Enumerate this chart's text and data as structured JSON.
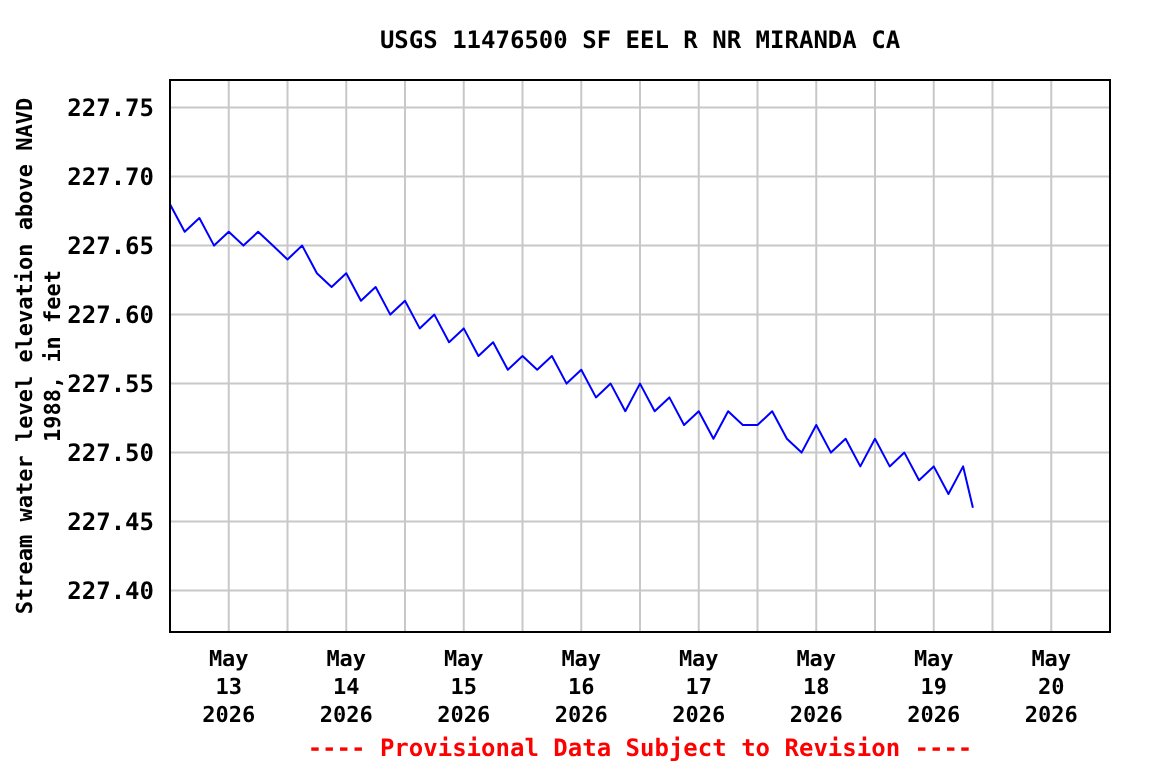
{
  "chart_data": {
    "type": "line",
    "title": "USGS 11476500 SF EEL R NR MIRANDA CA",
    "ylabel": "Stream water level elevation above NAVD\n1988, in feet",
    "annotations": [
      "---- Provisional Data Subject to Revision ----"
    ],
    "x": [
      "2026-05-13T00:00",
      "2026-05-13T03:00",
      "2026-05-13T06:00",
      "2026-05-13T09:00",
      "2026-05-13T12:00",
      "2026-05-13T15:00",
      "2026-05-13T18:00",
      "2026-05-13T21:00",
      "2026-05-14T00:00",
      "2026-05-14T03:00",
      "2026-05-14T06:00",
      "2026-05-14T09:00",
      "2026-05-14T12:00",
      "2026-05-14T15:00",
      "2026-05-14T18:00",
      "2026-05-14T21:00",
      "2026-05-15T00:00",
      "2026-05-15T03:00",
      "2026-05-15T06:00",
      "2026-05-15T09:00",
      "2026-05-15T12:00",
      "2026-05-15T15:00",
      "2026-05-15T18:00",
      "2026-05-15T21:00",
      "2026-05-16T00:00",
      "2026-05-16T03:00",
      "2026-05-16T06:00",
      "2026-05-16T09:00",
      "2026-05-16T12:00",
      "2026-05-16T15:00",
      "2026-05-16T18:00",
      "2026-05-16T21:00",
      "2026-05-17T00:00",
      "2026-05-17T03:00",
      "2026-05-17T06:00",
      "2026-05-17T09:00",
      "2026-05-17T12:00",
      "2026-05-17T15:00",
      "2026-05-17T18:00",
      "2026-05-17T21:00",
      "2026-05-18T00:00",
      "2026-05-18T03:00",
      "2026-05-18T06:00",
      "2026-05-18T09:00",
      "2026-05-18T12:00",
      "2026-05-18T15:00",
      "2026-05-18T18:00",
      "2026-05-18T21:00",
      "2026-05-19T00:00",
      "2026-05-19T03:00",
      "2026-05-19T06:00",
      "2026-05-19T09:00",
      "2026-05-19T12:00",
      "2026-05-19T15:00",
      "2026-05-19T18:00",
      "2026-05-19T20:00"
    ],
    "series": [
      {
        "color": "#0000ff",
        "values": [
          227.68,
          227.66,
          227.67,
          227.65,
          227.66,
          227.65,
          227.66,
          227.65,
          227.64,
          227.65,
          227.63,
          227.62,
          227.63,
          227.61,
          227.62,
          227.6,
          227.61,
          227.59,
          227.6,
          227.58,
          227.59,
          227.57,
          227.58,
          227.56,
          227.57,
          227.56,
          227.57,
          227.55,
          227.56,
          227.54,
          227.55,
          227.53,
          227.55,
          227.53,
          227.54,
          227.52,
          227.53,
          227.51,
          227.53,
          227.52,
          227.52,
          227.53,
          227.51,
          227.5,
          227.52,
          227.5,
          227.51,
          227.49,
          227.51,
          227.49,
          227.5,
          227.48,
          227.49,
          227.47,
          227.49,
          227.46
        ]
      }
    ],
    "xlim": [
      "2026-05-13T00:00",
      "2026-05-21T00:00"
    ],
    "xticks": [
      {
        "value": "2026-05-13T12:00",
        "label": "May\n13\n2026"
      },
      {
        "value": "2026-05-14T00:00",
        "label": null
      },
      {
        "value": "2026-05-14T12:00",
        "label": "May\n14\n2026"
      },
      {
        "value": "2026-05-15T00:00",
        "label": null
      },
      {
        "value": "2026-05-15T12:00",
        "label": "May\n15\n2026"
      },
      {
        "value": "2026-05-16T00:00",
        "label": null
      },
      {
        "value": "2026-05-16T12:00",
        "label": "May\n16\n2026"
      },
      {
        "value": "2026-05-17T00:00",
        "label": null
      },
      {
        "value": "2026-05-17T12:00",
        "label": "May\n17\n2026"
      },
      {
        "value": "2026-05-18T00:00",
        "label": null
      },
      {
        "value": "2026-05-18T12:00",
        "label": "May\n18\n2026"
      },
      {
        "value": "2026-05-19T00:00",
        "label": null
      },
      {
        "value": "2026-05-19T12:00",
        "label": "May\n19\n2026"
      },
      {
        "value": "2026-05-20T00:00",
        "label": null
      },
      {
        "value": "2026-05-20T12:00",
        "label": "May\n20\n2026"
      }
    ],
    "ylim": [
      227.37,
      227.77
    ],
    "yticks": [
      {
        "value": 227.4,
        "label": "227.40"
      },
      {
        "value": 227.45,
        "label": "227.45"
      },
      {
        "value": 227.5,
        "label": "227.50"
      },
      {
        "value": 227.55,
        "label": "227.55"
      },
      {
        "value": 227.6,
        "label": "227.60"
      },
      {
        "value": 227.65,
        "label": "227.65"
      },
      {
        "value": 227.7,
        "label": "227.70"
      },
      {
        "value": 227.75,
        "label": "227.75"
      }
    ],
    "grid": true,
    "line_style": "solid"
  }
}
